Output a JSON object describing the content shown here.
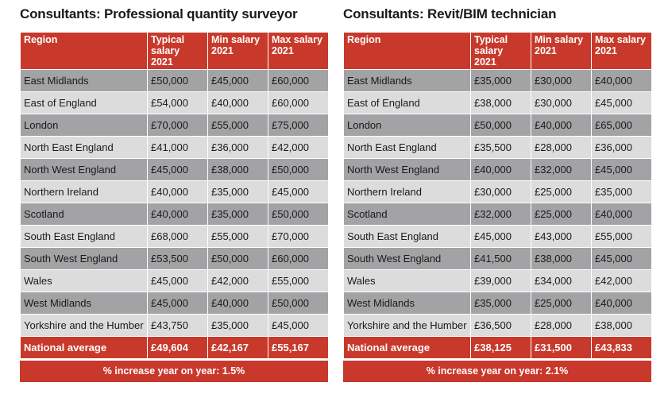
{
  "tables": [
    {
      "title": "Consultants: Professional quantity surveyor",
      "headers": [
        "Region",
        "Typical salary 2021",
        "Min salary 2021",
        "Max salary 2021"
      ],
      "rows": [
        [
          "East Midlands",
          "£50,000",
          "£45,000",
          "£60,000"
        ],
        [
          "East of England",
          "£54,000",
          "£40,000",
          "£60,000"
        ],
        [
          "London",
          "£70,000",
          "£55,000",
          "£75,000"
        ],
        [
          "North East England",
          "£41,000",
          "£36,000",
          "£42,000"
        ],
        [
          "North West England",
          "£45,000",
          "£38,000",
          "£50,000"
        ],
        [
          "Northern Ireland",
          "£40,000",
          "£35,000",
          "£45,000"
        ],
        [
          "Scotland",
          "£40,000",
          "£35,000",
          "£50,000"
        ],
        [
          "South East England",
          "£68,000",
          "£55,000",
          "£70,000"
        ],
        [
          "South West England",
          "£53,500",
          "£50,000",
          "£60,000"
        ],
        [
          "Wales",
          "£45,000",
          "£42,000",
          "£55,000"
        ],
        [
          "West Midlands",
          "£45,000",
          "£40,000",
          "£50,000"
        ],
        [
          "Yorkshire and the Humber",
          "£43,750",
          "£35,000",
          "£45,000"
        ]
      ],
      "average": [
        "National average",
        "£49,604",
        "£42,167",
        "£55,167"
      ],
      "footer": "% increase year on year: 1.5%"
    },
    {
      "title": "Consultants: Revit/BIM technician",
      "headers": [
        "Region",
        "Typical salary 2021",
        "Min salary 2021",
        "Max salary 2021"
      ],
      "rows": [
        [
          "East Midlands",
          "£35,000",
          "£30,000",
          "£40,000"
        ],
        [
          "East of England",
          "£38,000",
          "£30,000",
          "£45,000"
        ],
        [
          "London",
          "£50,000",
          "£40,000",
          "£65,000"
        ],
        [
          "North East England",
          "£35,500",
          "£28,000",
          "£36,000"
        ],
        [
          "North West England",
          "£40,000",
          "£32,000",
          "£45,000"
        ],
        [
          "Northern Ireland",
          "£30,000",
          "£25,000",
          "£35,000"
        ],
        [
          "Scotland",
          "£32,000",
          "£25,000",
          "£40,000"
        ],
        [
          "South East England",
          "£45,000",
          "£43,000",
          "£55,000"
        ],
        [
          "South West England",
          "£41,500",
          "£38,000",
          "£45,000"
        ],
        [
          "Wales",
          "£39,000",
          "£34,000",
          "£42,000"
        ],
        [
          "West Midlands",
          "£35,000",
          "£25,000",
          "£40,000"
        ],
        [
          "Yorkshire and the Humber",
          "£36,500",
          "£28,000",
          "£38,000"
        ]
      ],
      "average": [
        "National average",
        "£38,125",
        "£31,500",
        "£43,833"
      ],
      "footer": "% increase year on year: 2.1%"
    }
  ]
}
